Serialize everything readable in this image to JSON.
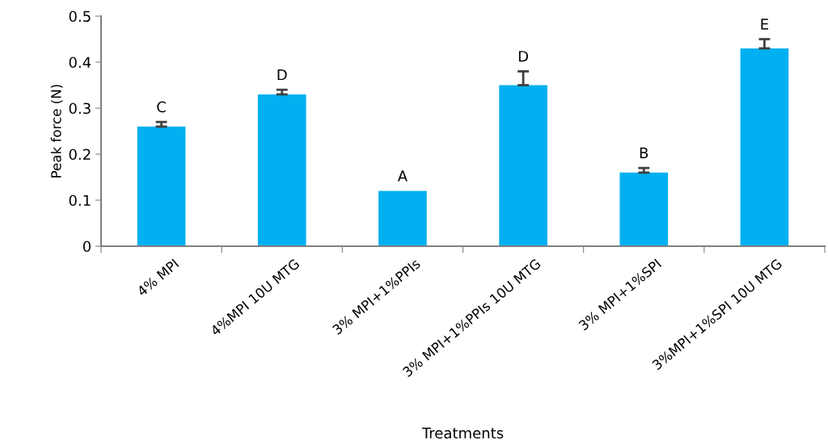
{
  "chart_data": {
    "type": "bar",
    "xlabel": "Treatments",
    "ylabel": "Peak force (N)",
    "categories": [
      "4% MPI",
      "4%MPI 10U MTG",
      "3% MPI+1%PPIs",
      "3% MPI+1%PPIs 10U MTG",
      "3% MPI+1%SPI",
      "3%MPI+1%SPI 10U MTG"
    ],
    "values": [
      0.26,
      0.33,
      0.12,
      0.35,
      0.16,
      0.43
    ],
    "errors": [
      [
        0.26,
        0.27
      ],
      [
        0.33,
        0.34
      ],
      null,
      [
        0.35,
        0.38
      ],
      [
        0.16,
        0.17
      ],
      [
        0.43,
        0.45
      ]
    ],
    "color": "#00b0f0",
    "ylim": [
      0,
      0.5
    ],
    "yticks": [
      {
        "value": 0,
        "label": "0"
      },
      0.1,
      0.2,
      0.3,
      0.4,
      0.5
    ],
    "grid": false,
    "annotations": [
      {
        "text": "C",
        "x": "4% MPI",
        "y": 0.26
      },
      {
        "text": "D",
        "x": "4%MPI 10U MTG",
        "y": 0.33
      },
      {
        "text": "A",
        "x": "3% MPI+1%PPIs",
        "y": 0.12
      },
      {
        "text": "D",
        "x": "3% MPI+1%PPIs 10U MTG",
        "y": 0.35
      },
      {
        "text": "B",
        "x": "3% MPI+1%SPI",
        "y": 0.16
      },
      {
        "text": "E",
        "x": "3%MPI+1%SPI 10U MTG",
        "y": 0.43
      }
    ]
  }
}
